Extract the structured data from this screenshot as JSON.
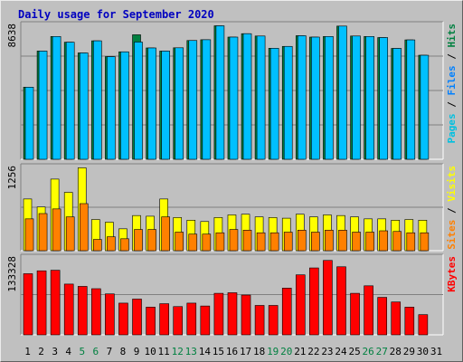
{
  "title": "Daily usage for September 2020",
  "colors": {
    "hits": "#008040",
    "files": "#00c0ff",
    "pages": "#00c0e0",
    "visits": "#ffff00",
    "sites": "#ff8000",
    "kbytes": "#ff0000",
    "weekend_label": "#008040",
    "weekday_label": "#000000",
    "title": "#0000c0"
  },
  "chart_data": [
    {
      "type": "bar",
      "panel": "top",
      "ymax_label": "8638",
      "ylim": [
        0,
        8638
      ],
      "legend": [
        "Pages",
        "/",
        "Files",
        "/",
        "Hits"
      ],
      "legend_colors": [
        "#00c0e0",
        "#000000",
        "#0080ff",
        "#000000",
        "#008040"
      ],
      "categories": [
        "1",
        "2",
        "3",
        "4",
        "5",
        "6",
        "7",
        "8",
        "9",
        "10",
        "11",
        "12",
        "13",
        "14",
        "15",
        "16",
        "17",
        "18",
        "19",
        "20",
        "21",
        "22",
        "23",
        "24",
        "25",
        "26",
        "27",
        "28",
        "29",
        "30",
        "31"
      ],
      "series": [
        {
          "name": "Hits",
          "values": [
            4650,
            6980,
            7920,
            7550,
            6860,
            7640,
            6620,
            6930,
            8030,
            7180,
            6980,
            7190,
            7660,
            7710,
            8610,
            7880,
            8100,
            7950,
            7160,
            7280,
            7970,
            7880,
            7920,
            8590,
            7950,
            7920,
            7850,
            7150,
            7700,
            6710,
            0
          ]
        },
        {
          "name": "Files",
          "values": [
            4650,
            6980,
            7920,
            7550,
            6860,
            7640,
            6620,
            6930,
            7560,
            7180,
            6980,
            7190,
            7660,
            7710,
            8610,
            7880,
            8100,
            7950,
            7160,
            7280,
            7970,
            7880,
            7920,
            8590,
            7950,
            7920,
            7850,
            7150,
            7700,
            6710,
            0
          ]
        }
      ]
    },
    {
      "type": "bar",
      "panel": "middle",
      "ymax_label": "1256",
      "ylim": [
        0,
        1256
      ],
      "legend": [
        "Sites",
        "/",
        "Visits"
      ],
      "legend_colors": [
        "#ff8000",
        "#000000",
        "#ffff00"
      ],
      "categories": [
        "1",
        "2",
        "3",
        "4",
        "5",
        "6",
        "7",
        "8",
        "9",
        "10",
        "11",
        "12",
        "13",
        "14",
        "15",
        "16",
        "17",
        "18",
        "19",
        "20",
        "21",
        "22",
        "23",
        "24",
        "25",
        "26",
        "27",
        "28",
        "29",
        "30",
        "31"
      ],
      "series": [
        {
          "name": "Visits",
          "values": [
            780,
            660,
            1080,
            880,
            1250,
            470,
            430,
            330,
            530,
            520,
            780,
            500,
            460,
            440,
            500,
            540,
            550,
            510,
            500,
            490,
            550,
            510,
            540,
            530,
            510,
            480,
            480,
            460,
            470,
            460,
            0
          ]
        },
        {
          "name": "Sites",
          "values": [
            480,
            560,
            630,
            510,
            710,
            170,
            210,
            180,
            320,
            320,
            510,
            280,
            250,
            250,
            270,
            320,
            310,
            270,
            270,
            280,
            310,
            280,
            310,
            310,
            280,
            280,
            300,
            290,
            270,
            270,
            0
          ]
        }
      ]
    },
    {
      "type": "bar",
      "panel": "bottom",
      "ymax_label": "133328",
      "ylim": [
        0,
        133328
      ],
      "legend": [
        "KBytes"
      ],
      "legend_colors": [
        "#ff0000"
      ],
      "categories": [
        "1",
        "2",
        "3",
        "4",
        "5",
        "6",
        "7",
        "8",
        "9",
        "10",
        "11",
        "12",
        "13",
        "14",
        "15",
        "16",
        "17",
        "18",
        "19",
        "20",
        "21",
        "22",
        "23",
        "24",
        "25",
        "26",
        "27",
        "28",
        "29",
        "30",
        "31"
      ],
      "series": [
        {
          "name": "KBytes",
          "values": [
            106000,
            111000,
            112000,
            88000,
            84000,
            80000,
            71000,
            55000,
            62000,
            48000,
            54000,
            49000,
            55000,
            50000,
            72000,
            73000,
            69000,
            51000,
            51000,
            81000,
            104000,
            116000,
            129000,
            118000,
            72000,
            85000,
            65000,
            57000,
            48000,
            35000,
            0
          ]
        }
      ]
    }
  ],
  "x_labels": {
    "values": [
      "1",
      "2",
      "3",
      "4",
      "5",
      "6",
      "7",
      "8",
      "9",
      "10",
      "11",
      "12",
      "13",
      "14",
      "15",
      "16",
      "17",
      "18",
      "19",
      "20",
      "21",
      "22",
      "23",
      "24",
      "25",
      "26",
      "27",
      "28",
      "29",
      "30",
      "31"
    ],
    "weekend": [
      5,
      6,
      12,
      13,
      19,
      20,
      26,
      27
    ]
  }
}
